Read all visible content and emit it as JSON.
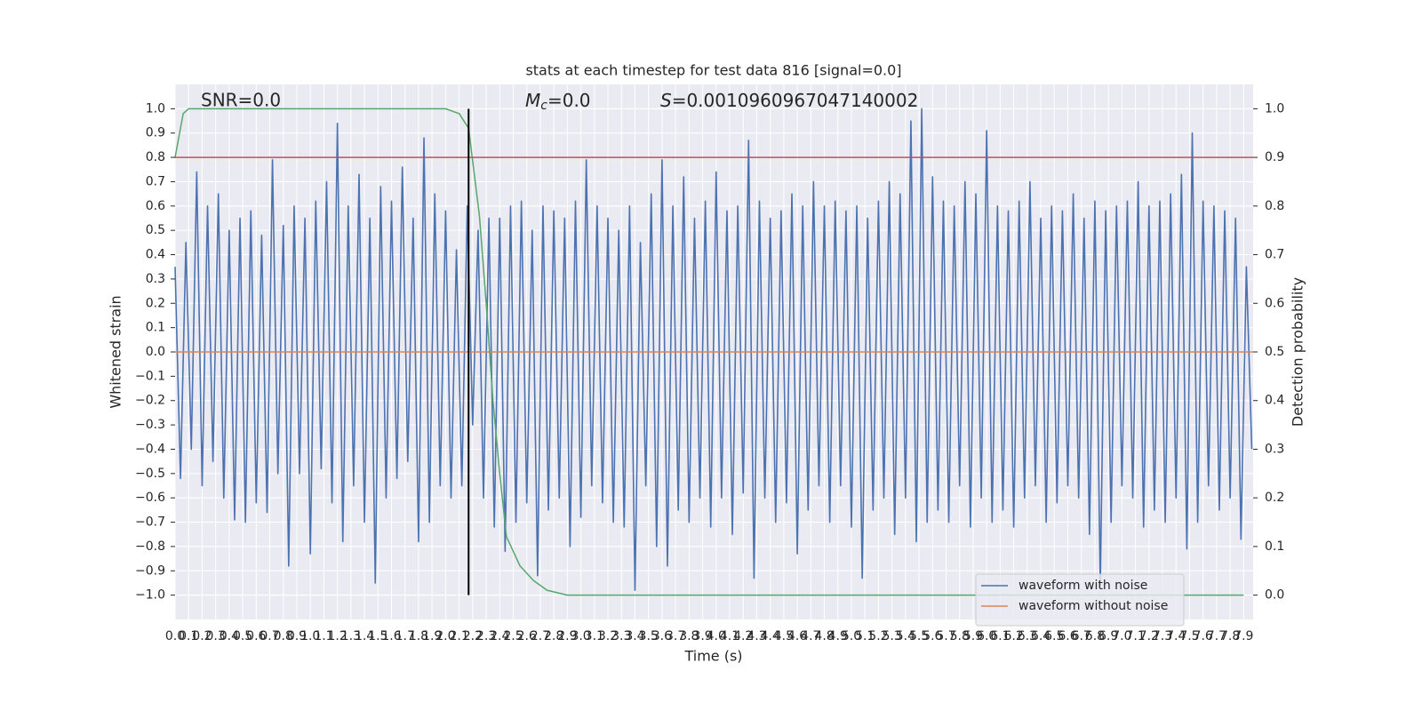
{
  "chart_data": {
    "type": "line",
    "title": "stats at each timestep for test data 816 [signal=0.0]",
    "xlabel": "Time (s)",
    "ylabel": "Whitened strain",
    "y2label": "Detection probability",
    "annotations": [
      {
        "text": "SNR=0.0"
      },
      {
        "base": "M",
        "sub": "c",
        "rest": "=0.0"
      },
      {
        "base": "S",
        "rest": "=0.0010960967047140002"
      }
    ],
    "xlim": [
      0,
      7.97
    ],
    "ylim": [
      -1.1,
      1.1
    ],
    "y2lim": [
      -0.05,
      1.05
    ],
    "grid": true,
    "legend": "lower right",
    "xticks": [
      {
        "value": 0,
        "label": "0.0"
      },
      0.1,
      0.2,
      0.3,
      0.4,
      0.5,
      0.6,
      0.7,
      0.8,
      0.9,
      {
        "value": 1,
        "label": "1.0"
      },
      1.1,
      1.2,
      1.3,
      1.4,
      1.5,
      1.6,
      1.7,
      1.8,
      1.9,
      {
        "value": 2,
        "label": "2.0"
      },
      2.1,
      2.2,
      2.3,
      2.4,
      2.5,
      2.6,
      2.7,
      2.8,
      2.9,
      {
        "value": 3,
        "label": "3.0"
      },
      3.1,
      3.2,
      3.3,
      3.4,
      3.5,
      3.6,
      3.7,
      3.8,
      3.9,
      {
        "value": 4,
        "label": "4.0"
      },
      4.1,
      4.2,
      4.3,
      4.4,
      4.5,
      4.6,
      4.7,
      4.8,
      4.9,
      {
        "value": 5,
        "label": "5.0"
      },
      5.1,
      5.2,
      5.3,
      5.4,
      5.5,
      5.6,
      5.7,
      5.8,
      5.9,
      {
        "value": 6,
        "label": "6.0"
      },
      6.1,
      6.2,
      6.3,
      6.4,
      6.5,
      6.6,
      6.7,
      6.8,
      6.9,
      {
        "value": 7,
        "label": "7.0"
      },
      7.1,
      7.2,
      7.3,
      7.4,
      7.5,
      7.6,
      7.7,
      7.8,
      7.9
    ],
    "yticks": [
      {
        "value": -1,
        "label": "−1.0"
      },
      {
        "value": -0.9,
        "label": "−0.9"
      },
      {
        "value": -0.8,
        "label": "−0.8"
      },
      {
        "value": -0.7,
        "label": "−0.7"
      },
      {
        "value": -0.6,
        "label": "−0.6"
      },
      {
        "value": -0.5,
        "label": "−0.5"
      },
      {
        "value": -0.4,
        "label": "−0.4"
      },
      {
        "value": -0.3,
        "label": "−0.3"
      },
      {
        "value": -0.2,
        "label": "−0.2"
      },
      {
        "value": -0.1,
        "label": "−0.1"
      },
      {
        "value": 0,
        "label": "0.0"
      },
      0.1,
      0.2,
      0.3,
      0.4,
      0.5,
      0.6,
      0.7,
      0.8,
      0.9,
      {
        "value": 1,
        "label": "1.0"
      }
    ],
    "y2ticks": [
      {
        "value": 0,
        "label": "0.0"
      },
      0.1,
      0.2,
      0.3,
      0.4,
      0.5,
      0.6,
      0.7,
      0.8,
      0.9,
      {
        "value": 1,
        "label": "1.0"
      }
    ],
    "series": [
      {
        "name": "waveform with noise",
        "color": "#4c72b0",
        "x": [
          0,
          0.04,
          0.08,
          0.12,
          0.16,
          0.2,
          0.24,
          0.28,
          0.32,
          0.36,
          0.4,
          0.44,
          0.48,
          0.52,
          0.56,
          0.6,
          0.64,
          0.68,
          0.72,
          0.76,
          0.8,
          0.84,
          0.88,
          0.92,
          0.96,
          1,
          1.04,
          1.08,
          1.12,
          1.16,
          1.2,
          1.24,
          1.28,
          1.32,
          1.36,
          1.4,
          1.44,
          1.48,
          1.52,
          1.56,
          1.6,
          1.64,
          1.68,
          1.72,
          1.76,
          1.8,
          1.84,
          1.88,
          1.92,
          1.96,
          2,
          2.04,
          2.08,
          2.12,
          2.16,
          2.2,
          2.24,
          2.28,
          2.32,
          2.36,
          2.4,
          2.44,
          2.48,
          2.52,
          2.56,
          2.6,
          2.64,
          2.68,
          2.72,
          2.76,
          2.8,
          2.84,
          2.88,
          2.92,
          2.96,
          3,
          3.04,
          3.08,
          3.12,
          3.16,
          3.2,
          3.24,
          3.28,
          3.32,
          3.36,
          3.4,
          3.44,
          3.48,
          3.52,
          3.56,
          3.6,
          3.64,
          3.68,
          3.72,
          3.76,
          3.8,
          3.84,
          3.88,
          3.92,
          3.96,
          4,
          4.04,
          4.08,
          4.12,
          4.16,
          4.2,
          4.24,
          4.28,
          4.32,
          4.36,
          4.4,
          4.44,
          4.48,
          4.52,
          4.56,
          4.6,
          4.64,
          4.68,
          4.72,
          4.76,
          4.8,
          4.84,
          4.88,
          4.92,
          4.96,
          5,
          5.04,
          5.08,
          5.12,
          5.16,
          5.2,
          5.24,
          5.28,
          5.32,
          5.36,
          5.4,
          5.44,
          5.48,
          5.52,
          5.56,
          5.6,
          5.64,
          5.68,
          5.72,
          5.76,
          5.8,
          5.84,
          5.88,
          5.92,
          5.96,
          6,
          6.04,
          6.08,
          6.12,
          6.16,
          6.2,
          6.24,
          6.28,
          6.32,
          6.36,
          6.4,
          6.44,
          6.48,
          6.52,
          6.56,
          6.6,
          6.64,
          6.68,
          6.72,
          6.76,
          6.8,
          6.84,
          6.88,
          6.92,
          6.96,
          7,
          7.04,
          7.08,
          7.12,
          7.16,
          7.2,
          7.24,
          7.28,
          7.32,
          7.36,
          7.4,
          7.44,
          7.48,
          7.52,
          7.56,
          7.6,
          7.64,
          7.68,
          7.72,
          7.76,
          7.8,
          7.84,
          7.88,
          7.92,
          7.96
        ],
        "values": [
          0.35,
          -0.52,
          0.45,
          -0.4,
          0.74,
          -0.55,
          0.6,
          -0.45,
          0.65,
          -0.6,
          0.5,
          -0.69,
          0.55,
          -0.7,
          0.58,
          -0.62,
          0.48,
          -0.66,
          0.79,
          -0.5,
          0.52,
          -0.88,
          0.6,
          -0.5,
          0.55,
          -0.83,
          0.62,
          -0.48,
          0.7,
          -0.62,
          0.94,
          -0.78,
          0.6,
          -0.55,
          0.73,
          -0.7,
          0.55,
          -0.95,
          0.68,
          -0.6,
          0.62,
          -0.52,
          0.76,
          -0.45,
          0.55,
          -0.78,
          0.88,
          -0.7,
          0.65,
          -0.55,
          0.58,
          -0.6,
          0.42,
          -0.55,
          0.6,
          -0.3,
          0.5,
          -0.6,
          0.55,
          -0.72,
          0.55,
          -0.82,
          0.6,
          -0.7,
          0.62,
          -0.62,
          0.5,
          -0.92,
          0.6,
          -0.65,
          0.58,
          -0.6,
          0.55,
          -0.8,
          0.62,
          -0.68,
          0.79,
          -0.55,
          0.6,
          -0.62,
          0.55,
          -0.7,
          0.5,
          -0.72,
          0.6,
          -0.98,
          0.45,
          -0.55,
          0.65,
          -0.8,
          0.79,
          -0.88,
          0.6,
          -0.65,
          0.72,
          -0.7,
          0.55,
          -0.6,
          0.62,
          -0.72,
          0.74,
          -0.6,
          0.58,
          -0.75,
          0.6,
          -0.58,
          0.87,
          -0.93,
          0.62,
          -0.6,
          0.55,
          -0.7,
          0.58,
          -0.62,
          0.65,
          -0.83,
          0.6,
          -0.65,
          0.7,
          -0.55,
          0.6,
          -0.7,
          0.62,
          -0.55,
          0.58,
          -0.72,
          0.6,
          -0.93,
          0.55,
          -0.65,
          0.62,
          -0.6,
          0.7,
          -0.75,
          0.65,
          -0.6,
          0.95,
          -0.78,
          1.0,
          -0.7,
          0.72,
          -0.65,
          0.62,
          -0.7,
          0.6,
          -0.55,
          0.7,
          -0.72,
          0.65,
          -0.6,
          0.91,
          -0.7,
          0.6,
          -0.65,
          0.58,
          -0.72,
          0.62,
          -0.6,
          0.7,
          -0.55,
          0.55,
          -0.7,
          0.6,
          -0.62,
          0.58,
          -0.55,
          0.65,
          -0.6,
          0.55,
          -0.75,
          0.62,
          -0.96,
          0.58,
          -0.7,
          0.6,
          -0.55,
          0.62,
          -0.6,
          0.7,
          -0.72,
          0.6,
          -0.65,
          0.62,
          -0.7,
          0.65,
          -0.6,
          0.73,
          -0.81,
          0.9,
          -0.7,
          0.62,
          -0.55,
          0.6,
          -0.65,
          0.58,
          -0.6,
          0.55,
          -0.77,
          0.35,
          -0.4
        ]
      },
      {
        "name": "waveform without noise",
        "color": "#dd8452",
        "x": [
          0,
          7.97
        ],
        "values": [
          0,
          0
        ]
      },
      {
        "color": "#55a868",
        "axis": "y2",
        "x": [
          0,
          0.06,
          0.1,
          0.2,
          0.5,
          1.0,
          1.5,
          2.0,
          2.1,
          2.17,
          2.25,
          2.3,
          2.35,
          2.4,
          2.45,
          2.55,
          2.65,
          2.75,
          2.9,
          3.5,
          5.0,
          7.9
        ],
        "values": [
          0.9,
          0.99,
          1.0,
          1.0,
          1.0,
          1.0,
          1.0,
          1.0,
          0.99,
          0.96,
          0.78,
          0.6,
          0.4,
          0.25,
          0.12,
          0.06,
          0.03,
          0.01,
          0.0,
          0.0,
          0.0,
          0.0
        ]
      }
    ],
    "hlines": [
      {
        "y": 0.8,
        "color": "#c44e52"
      }
    ],
    "vlines": [
      {
        "x": 2.17,
        "ymin": -1.0,
        "ymax": 1.0,
        "color": "#000000"
      }
    ]
  }
}
